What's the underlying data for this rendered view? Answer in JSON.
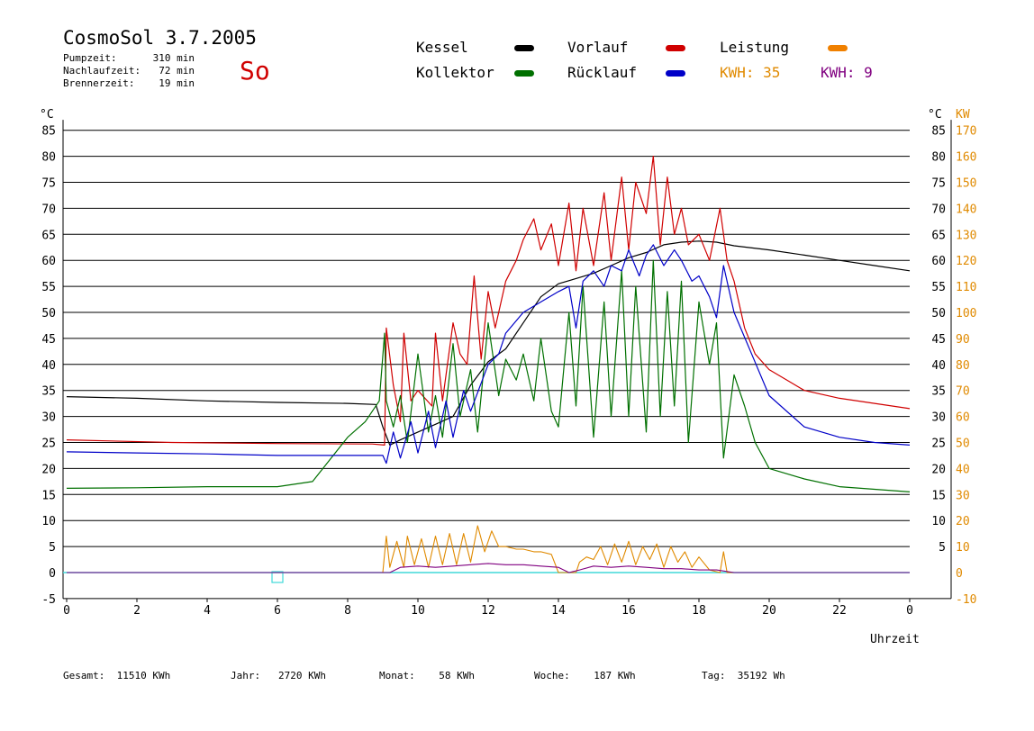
{
  "header": {
    "title": "CosmoSol 3.7.2005",
    "day": "So",
    "info": [
      {
        "label": "Pumpzeit:",
        "value": "310 min"
      },
      {
        "label": "Nachlaufzeit:",
        "value": "72 min"
      },
      {
        "label": "Brennerzeit:",
        "value": "19 min"
      }
    ]
  },
  "legend": {
    "kessel": "Kessel",
    "vorlauf": "Vorlauf",
    "leistung": "Leistung",
    "kollektor": "Kollektor",
    "ruecklauf": "Rücklauf",
    "kwh_orange": "KWH: 35",
    "kwh_purple": "KWH: 9"
  },
  "colors": {
    "kessel": "#000000",
    "vorlauf": "#d00000",
    "leistung": "#f08000",
    "kollektor": "#007000",
    "ruecklauf": "#0000c8",
    "kwh_orange": "#e08a00",
    "kwh_purple": "#800080",
    "zero_line": "#40d8d8"
  },
  "footer": [
    {
      "label": "Gesamt:",
      "value": "11510 KWh"
    },
    {
      "label": "Jahr:",
      "value": "2720 KWh"
    },
    {
      "label": "Monat:",
      "value": "58 KWh"
    },
    {
      "label": "Woche:",
      "value": "187 KWh"
    },
    {
      "label": "Tag:",
      "value": "35192 Wh"
    }
  ],
  "chart_data": {
    "type": "line",
    "xlabel": "Uhrzeit",
    "ylabel_left": "°C",
    "ylabel_right_celsius": "°C",
    "ylabel_right_kw": "KW",
    "xlim": [
      0,
      24
    ],
    "ylim": [
      -5,
      87
    ],
    "x_ticks": [
      "0",
      "2",
      "4",
      "6",
      "8",
      "10",
      "12",
      "14",
      "16",
      "18",
      "20",
      "22",
      "0"
    ],
    "y_ticks_left": [
      "85",
      "80",
      "75",
      "70",
      "65",
      "60",
      "55",
      "50",
      "45",
      "40",
      "35",
      "30",
      "25",
      "20",
      "15",
      "10",
      "5",
      "0",
      "-5"
    ],
    "y_ticks_right_celsius": [
      "85",
      "80",
      "75",
      "70",
      "65",
      "60",
      "55",
      "50",
      "45",
      "40",
      "35",
      "30",
      "25",
      "20",
      "15",
      "10",
      "5"
    ],
    "y_ticks_right_kw": [
      "170",
      "160",
      "150",
      "140",
      "130",
      "120",
      "110",
      "100",
      "90",
      "80",
      "70",
      "60",
      "50",
      "40",
      "30",
      "20",
      "10",
      "0",
      "-10"
    ],
    "series": [
      {
        "name": "Kessel",
        "color": "#000000",
        "x": [
          0,
          2,
          4,
          6,
          8,
          8.8,
          9.0,
          9.2,
          9.5,
          10,
          10.5,
          11,
          11.5,
          12,
          12.5,
          13,
          13.5,
          14,
          14.5,
          15,
          15.5,
          16,
          16.5,
          17,
          17.5,
          18,
          18.5,
          19,
          20,
          21,
          22,
          23,
          24
        ],
        "y": [
          33.8,
          33.5,
          33,
          32.7,
          32.5,
          32.3,
          28,
          24.5,
          25.5,
          27,
          28.5,
          30,
          36,
          40.5,
          43,
          48,
          53,
          55.5,
          56.5,
          57.5,
          59,
          60.5,
          61.5,
          63,
          63.5,
          63.7,
          63.5,
          62.8,
          62,
          61,
          60,
          59,
          58
        ]
      },
      {
        "name": "Vorlauf",
        "color": "#d00000",
        "x": [
          0,
          3,
          6,
          8.7,
          9.05,
          9.1,
          9.3,
          9.5,
          9.6,
          9.8,
          10,
          10.4,
          10.5,
          10.7,
          11,
          11.2,
          11.4,
          11.6,
          11.8,
          12,
          12.2,
          12.5,
          12.8,
          13,
          13.3,
          13.5,
          13.8,
          14,
          14.3,
          14.5,
          14.7,
          15,
          15.3,
          15.5,
          15.8,
          16,
          16.2,
          16.5,
          16.7,
          16.9,
          17.1,
          17.3,
          17.5,
          17.7,
          18,
          18.3,
          18.6,
          18.8,
          19,
          19.3,
          19.6,
          20,
          20.5,
          21,
          22,
          23,
          24
        ],
        "y": [
          25.5,
          25,
          24.8,
          24.7,
          24.5,
          47,
          36,
          29,
          46,
          33,
          35,
          32,
          46,
          33,
          48,
          42,
          40,
          57,
          41,
          54,
          47,
          56,
          60,
          64,
          68,
          62,
          67,
          59,
          71,
          58,
          70,
          59,
          73,
          60,
          76,
          62,
          75,
          69,
          80,
          63,
          76,
          65,
          70,
          63,
          65,
          60,
          70,
          60,
          56,
          47,
          42,
          39,
          37,
          35,
          33.5,
          32.5,
          31.5
        ]
      },
      {
        "name": "Kollektor",
        "color": "#007000",
        "x": [
          0,
          2,
          4,
          6,
          7,
          8,
          8.5,
          8.9,
          9.05,
          9.1,
          9.3,
          9.5,
          9.7,
          10,
          10.3,
          10.5,
          10.7,
          11,
          11.2,
          11.5,
          11.7,
          12,
          12.3,
          12.5,
          12.8,
          13,
          13.3,
          13.5,
          13.8,
          14,
          14.3,
          14.5,
          14.7,
          15,
          15.3,
          15.5,
          15.8,
          16,
          16.2,
          16.5,
          16.7,
          16.9,
          17.1,
          17.3,
          17.5,
          17.7,
          18,
          18.3,
          18.5,
          18.7,
          19,
          19.3,
          19.6,
          20,
          21,
          22,
          23,
          24
        ],
        "y": [
          16.2,
          16.3,
          16.5,
          16.5,
          17.5,
          26,
          29,
          33,
          46,
          33,
          28,
          34,
          25,
          42,
          27,
          34,
          26,
          44,
          30,
          39,
          27,
          48,
          34,
          41,
          37,
          42,
          33,
          45,
          31,
          28,
          50,
          32,
          55,
          26,
          52,
          30,
          58,
          30,
          55,
          27,
          60,
          30,
          54,
          32,
          56,
          25,
          52,
          40,
          48,
          22,
          38,
          32,
          25,
          20,
          18,
          16.5,
          16,
          15.5
        ]
      },
      {
        "name": "Rücklauf",
        "color": "#0000c8",
        "x": [
          0,
          2,
          4,
          6,
          8,
          9.0,
          9.1,
          9.3,
          9.5,
          9.8,
          10,
          10.3,
          10.5,
          10.8,
          11,
          11.3,
          11.5,
          12,
          12.3,
          12.5,
          13,
          13.5,
          14,
          14.3,
          14.5,
          14.7,
          15,
          15.3,
          15.5,
          15.8,
          16,
          16.3,
          16.5,
          16.7,
          17,
          17.3,
          17.5,
          17.8,
          18,
          18.3,
          18.5,
          18.7,
          19,
          19.5,
          20,
          21,
          22,
          23,
          24
        ],
        "y": [
          23.2,
          23,
          22.8,
          22.5,
          22.5,
          22.5,
          21,
          27,
          22,
          29,
          23,
          31,
          24,
          33,
          26,
          35,
          31,
          40,
          42,
          46,
          50,
          52,
          54,
          55,
          47,
          56,
          58,
          55,
          59,
          58,
          62,
          57,
          61,
          63,
          59,
          62,
          60,
          56,
          57,
          53,
          49,
          59,
          50,
          42,
          34,
          28,
          26,
          25,
          24.5
        ]
      }
    ],
    "power_series": [
      {
        "name": "Leistung",
        "color": "#e08a00",
        "x": [
          0,
          9.0,
          9.1,
          9.2,
          9.4,
          9.6,
          9.7,
          9.9,
          10.1,
          10.3,
          10.5,
          10.7,
          10.9,
          11.1,
          11.3,
          11.5,
          11.7,
          11.9,
          12.1,
          12.3,
          12.5,
          12.8,
          13,
          13.3,
          13.5,
          13.8,
          14,
          14.2,
          14.5,
          14.6,
          14.8,
          15,
          15.2,
          15.4,
          15.6,
          15.8,
          16,
          16.2,
          16.4,
          16.6,
          16.8,
          17,
          17.2,
          17.4,
          17.6,
          17.8,
          18,
          18.3,
          18.6,
          18.7,
          18.8,
          19,
          24
        ],
        "y": [
          0,
          0,
          14,
          2,
          12,
          2,
          14,
          3,
          13,
          2,
          14,
          3,
          15,
          3,
          15,
          4,
          18,
          8,
          16,
          10,
          10,
          9,
          9,
          8,
          8,
          7,
          0,
          0,
          0,
          4,
          6,
          5,
          10,
          3,
          11,
          4,
          12,
          3,
          10,
          5,
          11,
          2,
          10,
          4,
          8,
          2,
          6,
          1,
          0,
          8,
          0,
          0,
          0
        ]
      },
      {
        "name": "KWH: 9",
        "color": "#800080",
        "x": [
          0,
          9.2,
          9.5,
          10,
          10.5,
          11,
          11.5,
          12,
          12.5,
          13,
          13.5,
          14,
          14.3,
          14.6,
          15,
          15.5,
          16,
          16.5,
          17,
          17.5,
          18,
          18.5,
          19,
          24
        ],
        "y": [
          0,
          0,
          2,
          2.5,
          2,
          2.5,
          3,
          3.5,
          3,
          3,
          2.5,
          2,
          0,
          1,
          2.5,
          2,
          2.5,
          2,
          1.5,
          1.5,
          1,
          1,
          0,
          0
        ]
      }
    ]
  }
}
